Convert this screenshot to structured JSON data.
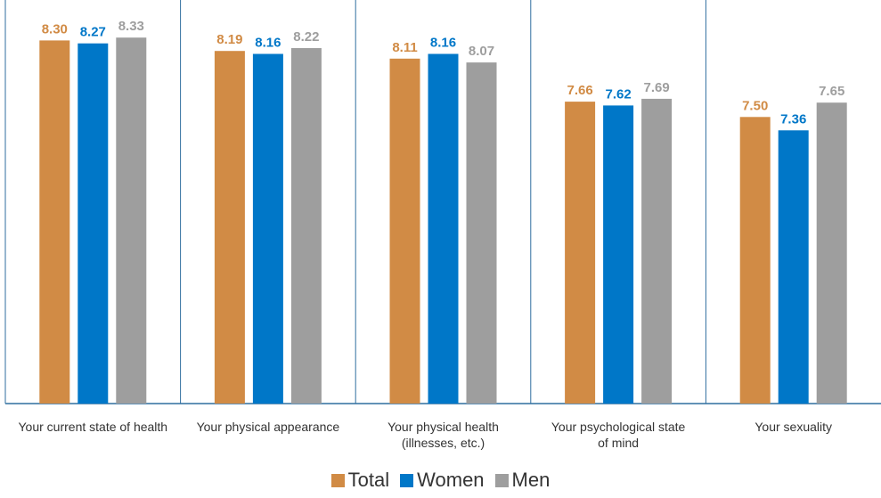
{
  "chart_data": {
    "type": "bar",
    "title": "",
    "xlabel": "",
    "ylabel": "",
    "categories": [
      [
        "Your current state of health"
      ],
      [
        "Your physical appearance"
      ],
      [
        "Your physical health",
        "(illnesses, etc.)"
      ],
      [
        "Your psychological state",
        "of mind"
      ],
      [
        "Your sexuality"
      ]
    ],
    "series": [
      {
        "name": "Total",
        "color": "#D18B45",
        "values": [
          8.3,
          8.19,
          8.11,
          7.66,
          7.5
        ],
        "labels": [
          "8.30",
          "8.19",
          "8.11",
          "7.66",
          "7.50"
        ]
      },
      {
        "name": "Women",
        "color": "#0077C8",
        "values": [
          8.27,
          8.16,
          8.16,
          7.62,
          7.36
        ],
        "labels": [
          "8.27",
          "8.16",
          "8.16",
          "7.62",
          "7.36"
        ]
      },
      {
        "name": "Men",
        "color": "#9E9E9E",
        "values": [
          8.33,
          8.22,
          8.07,
          7.69,
          7.65
        ],
        "labels": [
          "8.33",
          "8.22",
          "8.07",
          "7.69",
          "7.65"
        ]
      }
    ],
    "ylim": [
      4.5,
      8.5
    ],
    "grid": false,
    "legend_position": "bottom"
  }
}
